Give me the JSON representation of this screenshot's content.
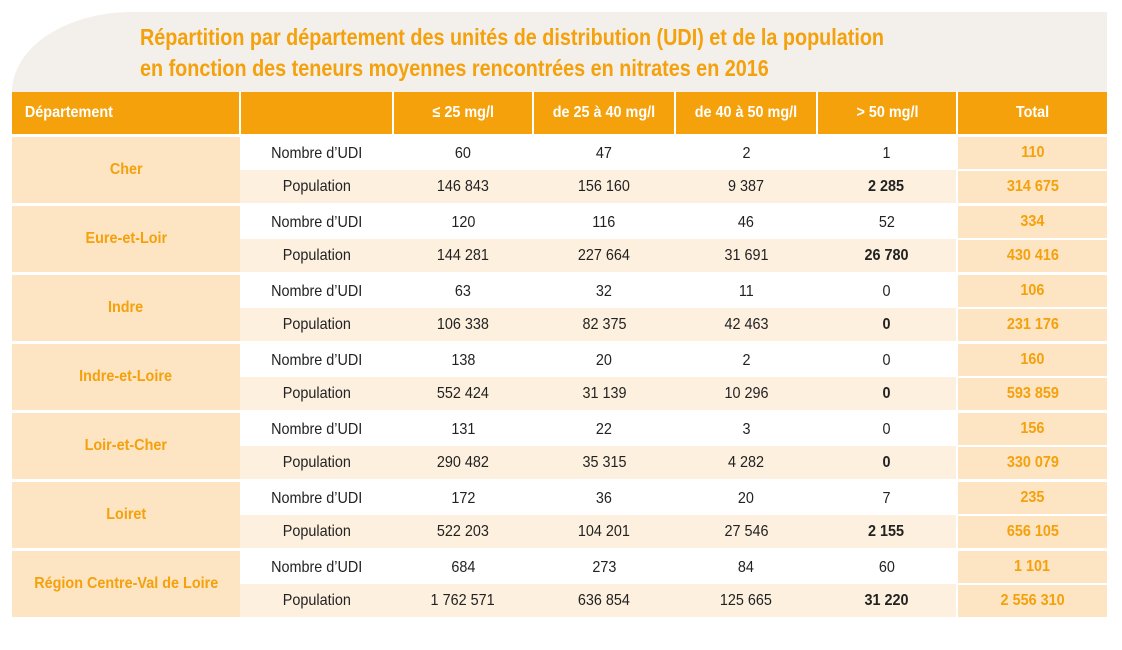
{
  "title": {
    "line1": "Répartition par département des unités de distribution (UDI) et de la population",
    "line2": "en fonction des teneurs moyennes rencontrées en nitrates en 2016"
  },
  "columns": [
    "Département",
    "",
    "≤ 25 mg/l",
    "de 25 à 40 mg/l",
    "de 40 à 50 mg/l",
    "> 50 mg/l",
    "Total"
  ],
  "row_labels": {
    "udi": "Nombre d’UDI",
    "population": "Population"
  },
  "departments": [
    {
      "name": "Cher",
      "udi": [
        "60",
        "47",
        "2",
        "1",
        "110"
      ],
      "population": [
        "146 843",
        "156 160",
        "9 387",
        "2 285",
        "314 675"
      ]
    },
    {
      "name": "Eure-et-Loir",
      "udi": [
        "120",
        "116",
        "46",
        "52",
        "334"
      ],
      "population": [
        "144 281",
        "227 664",
        "31 691",
        "26 780",
        "430 416"
      ]
    },
    {
      "name": "Indre",
      "udi": [
        "63",
        "32",
        "11",
        "0",
        "106"
      ],
      "population": [
        "106 338",
        "82 375",
        "42 463",
        "0",
        "231 176"
      ]
    },
    {
      "name": "Indre-et-Loire",
      "udi": [
        "138",
        "20",
        "2",
        "0",
        "160"
      ],
      "population": [
        "552 424",
        "31 139",
        "10 296",
        "0",
        "593 859"
      ]
    },
    {
      "name": "Loir-et-Cher",
      "udi": [
        "131",
        "22",
        "3",
        "0",
        "156"
      ],
      "population": [
        "290 482",
        "35 315",
        "4 282",
        "0",
        "330 079"
      ]
    },
    {
      "name": "Loiret",
      "udi": [
        "172",
        "36",
        "20",
        "7",
        "235"
      ],
      "population": [
        "522 203",
        "104 201",
        "27 546",
        "2 155",
        "656 105"
      ]
    },
    {
      "name": "Région Centre-Val de Loire",
      "udi": [
        "684",
        "273",
        "84",
        "60",
        "1 101"
      ],
      "population": [
        "1 762 571",
        "636 854",
        "125 665",
        "31 220",
        "2 556 310"
      ]
    }
  ],
  "colors": {
    "accent": "#f4a10b",
    "light": "#fde4c3",
    "pale": "#fdf0df",
    "banner": "#f3efea"
  }
}
